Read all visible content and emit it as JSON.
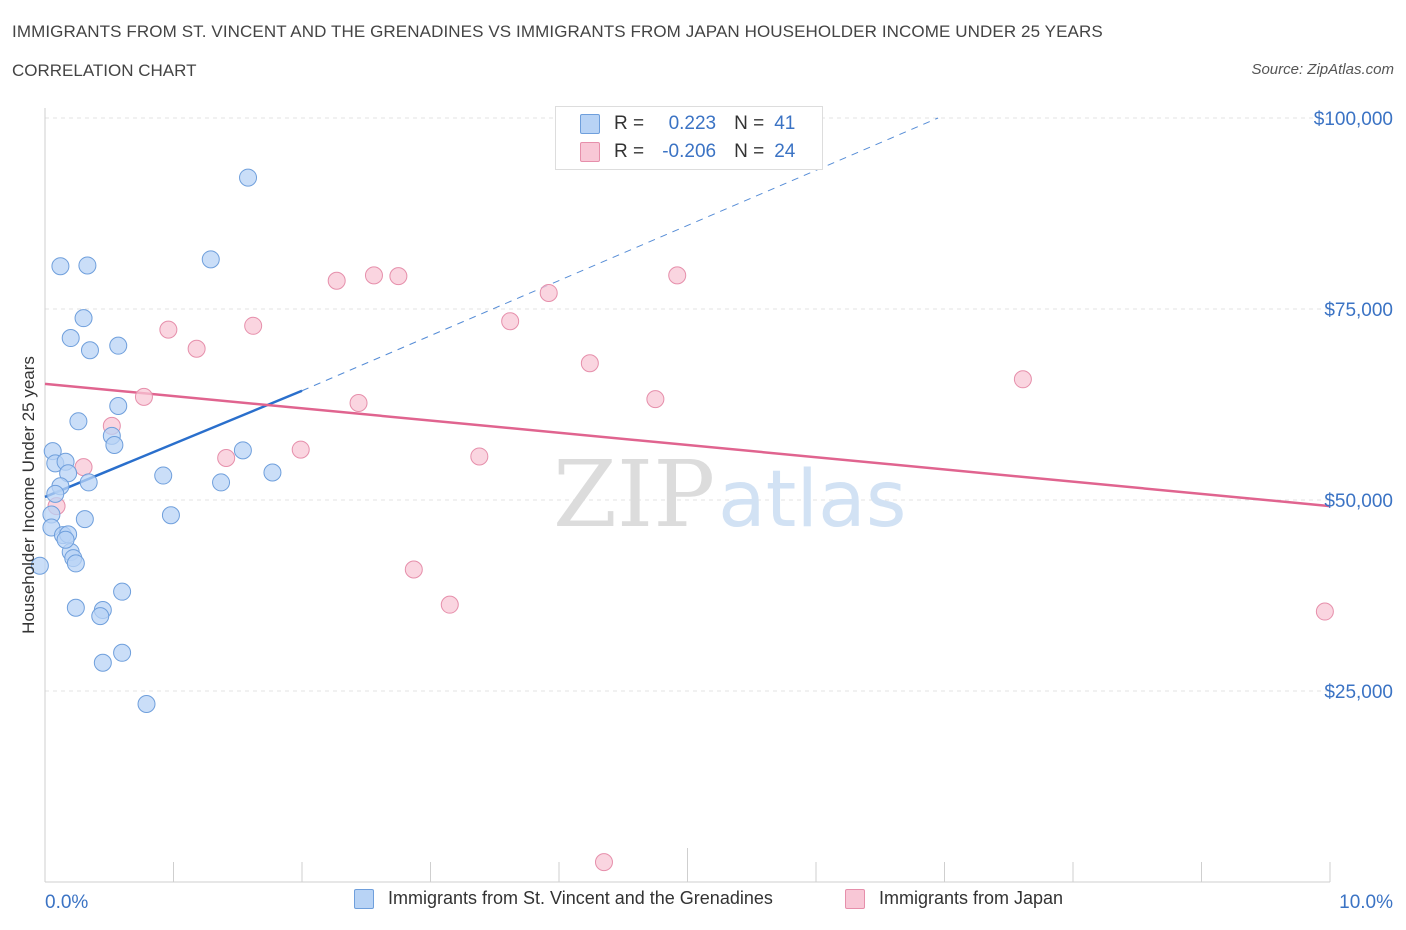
{
  "title": "IMMIGRANTS FROM ST. VINCENT AND THE GRENADINES VS IMMIGRANTS FROM JAPAN HOUSEHOLDER INCOME UNDER 25 YEARS",
  "subtitle": "CORRELATION CHART",
  "source": "Source: ZipAtlas.com",
  "watermark": {
    "zip": "ZIP",
    "atlas": "atlas"
  },
  "legend": {
    "r_label": "R =",
    "n_label": "N =",
    "series1": {
      "r": "0.223",
      "n": "41"
    },
    "series2": {
      "r": "-0.206",
      "n": "24"
    }
  },
  "colors": {
    "blue_fill": "#b8d3f5",
    "blue_stroke": "#6f9fdc",
    "blue_line": "#2a6fcc",
    "pink_fill": "#f8c7d6",
    "pink_stroke": "#e68fab",
    "pink_line": "#e0648f",
    "tick_blue": "#3b73c4"
  },
  "chart_data": {
    "type": "scatter",
    "xlabel": "",
    "ylabel": "Householder Income Under 25 years",
    "xlim": [
      0,
      10
    ],
    "ylim": [
      0,
      100000
    ],
    "x_tick_labels": [
      "0.0%",
      "10.0%"
    ],
    "y_ticks": [
      {
        "value": 100000,
        "label": "$100,000"
      },
      {
        "value": 75000,
        "label": "$75,000"
      },
      {
        "value": 50000,
        "label": "$50,000"
      },
      {
        "value": 25000,
        "label": "$25,000"
      }
    ],
    "series": [
      {
        "name": "Immigrants from St. Vincent and the Grenadines",
        "color": "blue",
        "trend": {
          "x": [
            0.0,
            2.0
          ],
          "y": [
            50400,
            64300
          ],
          "dashed_to": {
            "x": 6.95,
            "y": 100000
          }
        },
        "points": [
          [
            1.58,
            92200
          ],
          [
            1.29,
            81500
          ],
          [
            0.12,
            80600
          ],
          [
            0.33,
            80700
          ],
          [
            0.3,
            73800
          ],
          [
            0.2,
            71200
          ],
          [
            0.35,
            69600
          ],
          [
            0.57,
            70200
          ],
          [
            0.57,
            62300
          ],
          [
            0.26,
            60300
          ],
          [
            0.52,
            58400
          ],
          [
            0.54,
            57200
          ],
          [
            1.54,
            56500
          ],
          [
            0.06,
            56400
          ],
          [
            0.08,
            54800
          ],
          [
            0.16,
            55000
          ],
          [
            0.18,
            53500
          ],
          [
            0.92,
            53200
          ],
          [
            1.77,
            53600
          ],
          [
            0.34,
            52300
          ],
          [
            1.37,
            52300
          ],
          [
            0.12,
            51800
          ],
          [
            0.08,
            50800
          ],
          [
            0.05,
            48100
          ],
          [
            0.98,
            48000
          ],
          [
            0.31,
            47500
          ],
          [
            0.05,
            46400
          ],
          [
            0.14,
            45400
          ],
          [
            0.18,
            45500
          ],
          [
            0.2,
            43200
          ],
          [
            0.22,
            42400
          ],
          [
            0.24,
            41700
          ],
          [
            -0.04,
            41400
          ],
          [
            0.6,
            38000
          ],
          [
            0.24,
            35900
          ],
          [
            0.45,
            35600
          ],
          [
            0.43,
            34800
          ],
          [
            0.6,
            30000
          ],
          [
            0.45,
            28700
          ],
          [
            0.79,
            23300
          ],
          [
            0.16,
            44800
          ]
        ]
      },
      {
        "name": "Immigrants from Japan",
        "color": "pink",
        "trend": {
          "x": [
            0.0,
            10.0
          ],
          "y": [
            65200,
            49200
          ]
        },
        "points": [
          [
            2.27,
            78700
          ],
          [
            2.56,
            79400
          ],
          [
            2.75,
            79300
          ],
          [
            4.92,
            79400
          ],
          [
            3.92,
            77100
          ],
          [
            1.62,
            72800
          ],
          [
            0.96,
            72300
          ],
          [
            3.62,
            73400
          ],
          [
            1.18,
            69800
          ],
          [
            4.24,
            67900
          ],
          [
            7.61,
            65800
          ],
          [
            0.77,
            63500
          ],
          [
            2.44,
            62700
          ],
          [
            4.75,
            63200
          ],
          [
            0.52,
            59700
          ],
          [
            1.99,
            56600
          ],
          [
            1.41,
            55500
          ],
          [
            3.38,
            55700
          ],
          [
            0.3,
            54300
          ],
          [
            0.09,
            49200
          ],
          [
            2.87,
            40900
          ],
          [
            3.15,
            36300
          ],
          [
            9.96,
            35400
          ],
          [
            4.35,
            2600
          ]
        ]
      }
    ]
  }
}
